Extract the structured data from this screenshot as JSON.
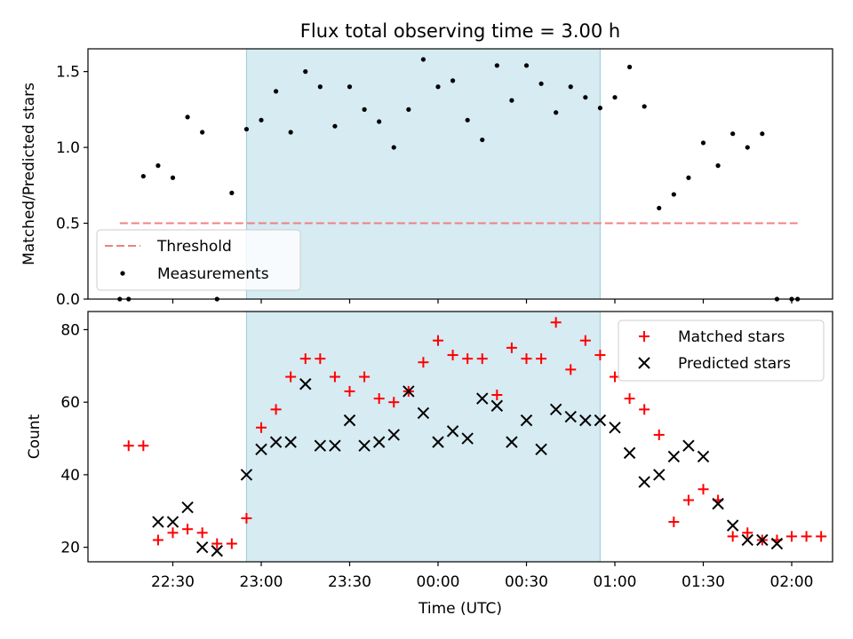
{
  "chart_data": [
    {
      "type": "scatter",
      "title": "Flux total observing time = 3.00 h",
      "ylabel": "Matched/Predicted stars",
      "ylim": [
        0,
        1.65
      ],
      "yticks": [
        0.0,
        0.5,
        1.0,
        1.5
      ],
      "ytick_labels": [
        "0.0",
        "0.5",
        "1.0",
        "1.5"
      ],
      "shaded_x_range": [
        "22:55",
        "00:55"
      ],
      "threshold": {
        "name": "Threshold",
        "y": 0.5,
        "x_start": "22:12",
        "x_end": "02:02",
        "color": "#f08080"
      },
      "legend": {
        "placement": "lower-left",
        "entries": [
          "Threshold",
          "Measurements"
        ]
      },
      "series": [
        {
          "name": "Measurements",
          "color": "#000000",
          "marker": "dot",
          "x": [
            "22:12",
            "22:15",
            "22:20",
            "22:25",
            "22:30",
            "22:35",
            "22:40",
            "22:45",
            "22:50",
            "22:55",
            "23:00",
            "23:05",
            "23:10",
            "23:15",
            "23:20",
            "23:25",
            "23:30",
            "23:35",
            "23:40",
            "23:45",
            "23:50",
            "23:55",
            "00:00",
            "00:05",
            "00:10",
            "00:15",
            "00:20",
            "00:25",
            "00:30",
            "00:35",
            "00:40",
            "00:45",
            "00:50",
            "00:55",
            "01:00",
            "01:05",
            "01:10",
            "01:15",
            "01:20",
            "01:25",
            "01:30",
            "01:35",
            "01:40",
            "01:45",
            "01:50",
            "01:55",
            "02:00",
            "02:02"
          ],
          "y": [
            0.0,
            0.0,
            0.81,
            0.88,
            0.8,
            1.2,
            1.1,
            0.0,
            0.7,
            1.12,
            1.18,
            1.37,
            1.1,
            1.5,
            1.4,
            1.14,
            1.4,
            1.25,
            1.17,
            1.0,
            1.25,
            1.58,
            1.4,
            1.44,
            1.18,
            1.05,
            1.54,
            1.31,
            1.54,
            1.42,
            1.23,
            1.4,
            1.33,
            1.26,
            1.33,
            1.53,
            1.27,
            0.6,
            0.69,
            0.8,
            1.03,
            0.88,
            1.09,
            1.0,
            1.09,
            0.0,
            0.0,
            0.0
          ]
        }
      ]
    },
    {
      "type": "scatter",
      "xlabel": "Time (UTC)",
      "ylabel": "Count",
      "ylim": [
        16,
        85
      ],
      "yticks": [
        20,
        40,
        60,
        80
      ],
      "ytick_labels": [
        "20",
        "40",
        "60",
        "80"
      ],
      "xticks": [
        "22:30",
        "23:00",
        "23:30",
        "00:00",
        "00:30",
        "01:00",
        "01:30",
        "02:00"
      ],
      "xtick_labels": [
        "22:30",
        "23:00",
        "23:30",
        "00:00",
        "00:30",
        "01:00",
        "01:30",
        "02:00"
      ],
      "shaded_x_range": [
        "22:55",
        "00:55"
      ],
      "legend": {
        "placement": "upper-right",
        "entries": [
          "Matched stars",
          "Predicted stars"
        ]
      },
      "series": [
        {
          "name": "Matched stars",
          "color": "#ff0000",
          "marker": "plus",
          "x": [
            "22:15",
            "22:20",
            "22:25",
            "22:30",
            "22:35",
            "22:40",
            "22:45",
            "22:50",
            "22:55",
            "23:00",
            "23:05",
            "23:10",
            "23:15",
            "23:20",
            "23:25",
            "23:30",
            "23:35",
            "23:40",
            "23:45",
            "23:50",
            "23:55",
            "00:00",
            "00:05",
            "00:10",
            "00:15",
            "00:20",
            "00:25",
            "00:30",
            "00:35",
            "00:40",
            "00:45",
            "00:50",
            "00:55",
            "01:00",
            "01:05",
            "01:10",
            "01:15",
            "01:20",
            "01:25",
            "01:30",
            "01:35",
            "01:40",
            "01:45",
            "01:50",
            "01:55",
            "02:00",
            "02:05",
            "02:10"
          ],
          "y": [
            48,
            48,
            22,
            24,
            25,
            24,
            21,
            21,
            28,
            53,
            58,
            67,
            72,
            72,
            67,
            63,
            67,
            61,
            60,
            63,
            71,
            77,
            73,
            72,
            72,
            62,
            75,
            72,
            72,
            82,
            69,
            77,
            73,
            67,
            61,
            58,
            51,
            27,
            33,
            36,
            33,
            23,
            24,
            22,
            22,
            23,
            23,
            23
          ]
        },
        {
          "name": "Predicted stars",
          "color": "#000000",
          "marker": "x",
          "x": [
            "22:25",
            "22:30",
            "22:35",
            "22:40",
            "22:45",
            "22:55",
            "23:00",
            "23:05",
            "23:10",
            "23:15",
            "23:20",
            "23:25",
            "23:30",
            "23:35",
            "23:40",
            "23:45",
            "23:50",
            "23:55",
            "00:00",
            "00:05",
            "00:10",
            "00:15",
            "00:20",
            "00:25",
            "00:30",
            "00:35",
            "00:40",
            "00:45",
            "00:50",
            "00:55",
            "01:00",
            "01:05",
            "01:10",
            "01:15",
            "01:20",
            "01:25",
            "01:30",
            "01:35",
            "01:40",
            "01:45",
            "01:50",
            "01:55"
          ],
          "y": [
            27,
            27,
            31,
            20,
            19,
            40,
            47,
            49,
            49,
            65,
            48,
            48,
            55,
            48,
            49,
            51,
            63,
            57,
            49,
            52,
            50,
            61,
            59,
            49,
            55,
            47,
            58,
            56,
            55,
            55,
            53,
            46,
            38,
            40,
            45,
            48,
            45,
            32,
            26,
            22,
            22,
            21
          ]
        }
      ]
    }
  ]
}
